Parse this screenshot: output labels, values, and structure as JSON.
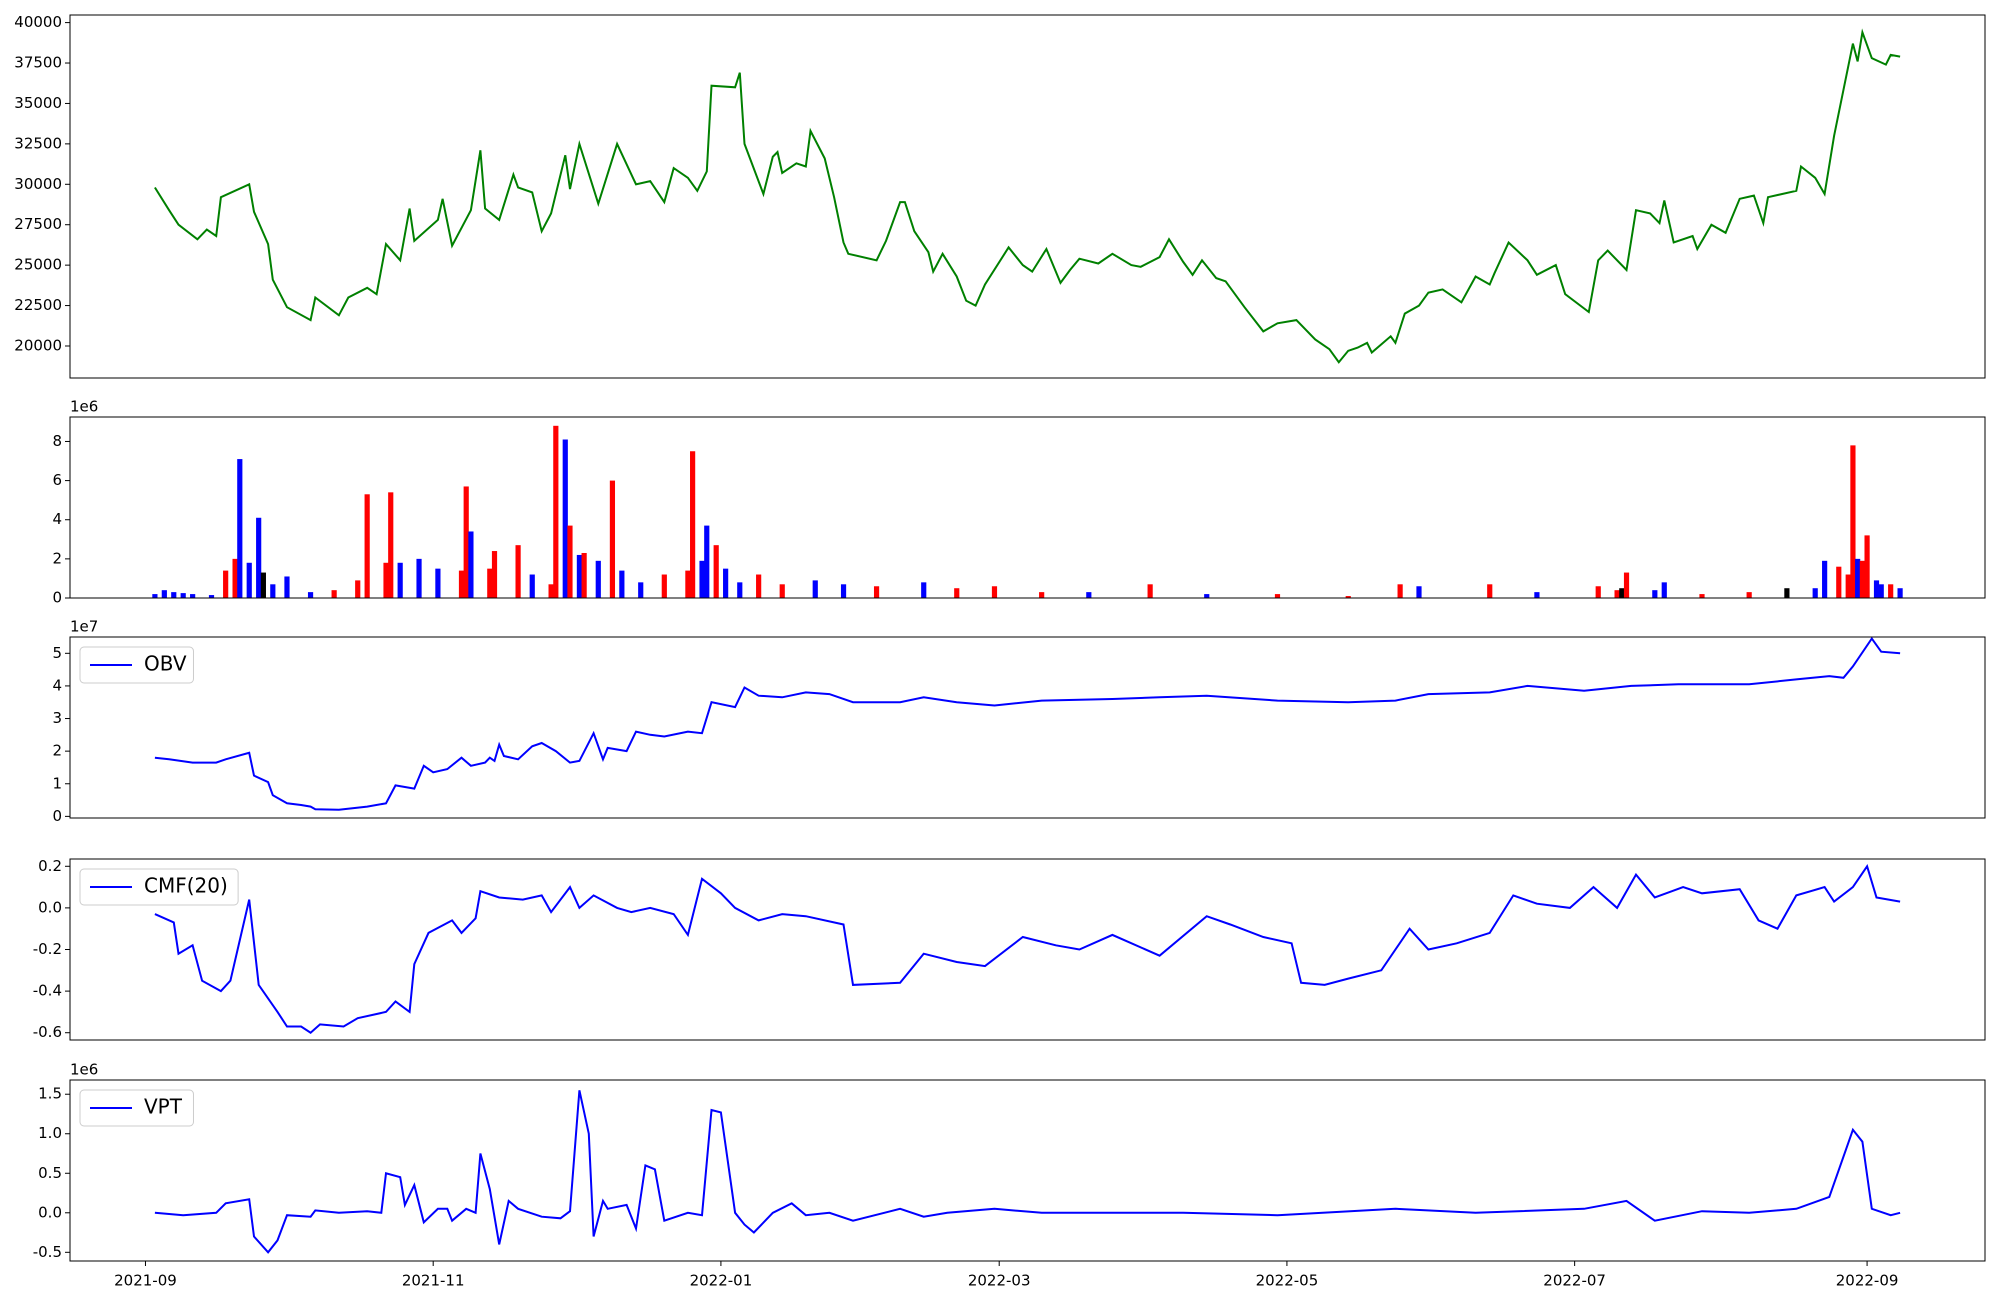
{
  "chart_data": [
    {
      "type": "line",
      "color": "#008000",
      "x": [
        2,
        5,
        7,
        11,
        13,
        15,
        16,
        22,
        23,
        26,
        27,
        30,
        35,
        36,
        41,
        43,
        47,
        49,
        51,
        54,
        56,
        57,
        62,
        63,
        65,
        69,
        71,
        72,
        75,
        78,
        79,
        82,
        84,
        86,
        89,
        90,
        92,
        96,
        100,
        104,
        107,
        110,
        112,
        115,
        117,
        119,
        120,
        125,
        126,
        127,
        131,
        133,
        134,
        135,
        138,
        140,
        141,
        144,
        146,
        148,
        149,
        155,
        157,
        160,
        161,
        163,
        166,
        167,
        169,
        172,
        174,
        176,
        178,
        183,
        186,
        188,
        191,
        194,
        196,
        198,
        202,
        205,
        209,
        211,
        215,
        217,
        220,
        222,
        224,
        227,
        229,
        233,
        237,
        240,
        244,
        248,
        251,
        253,
        255,
        257,
        259,
        260,
        262,
        264,
        265,
        267,
        270,
        272,
        275,
        279,
        282,
        285,
        286,
        289,
        293,
        295,
        299,
        301,
        306,
        308,
        310,
        314,
        316,
        319,
        321,
        322,
        324,
        328,
        329,
        332,
        335,
        338,
        341,
        343,
        344,
        350,
        351,
        354,
        356,
        358,
        362,
        363,
        364,
        366,
        369,
        370,
        372
      ],
      "values": [
        29800,
        28400,
        27500,
        26600,
        27200,
        26800,
        29200,
        30000,
        28300,
        26300,
        24100,
        22400,
        21600,
        23000,
        21900,
        23000,
        23600,
        23200,
        26300,
        25300,
        28500,
        26500,
        27800,
        29100,
        26200,
        28400,
        32100,
        28500,
        27800,
        30600,
        29800,
        29500,
        27100,
        28200,
        31800,
        29700,
        32500,
        28800,
        32500,
        30000,
        30200,
        28900,
        31000,
        30400,
        29600,
        30800,
        36100,
        36000,
        36900,
        32500,
        29400,
        31700,
        32000,
        30700,
        31300,
        31100,
        33300,
        31600,
        29200,
        26400,
        25700,
        25300,
        26500,
        28900,
        28900,
        27100,
        25800,
        24600,
        25700,
        24300,
        22800,
        22500,
        23800,
        26100,
        25000,
        24600,
        26000,
        23900,
        24700,
        25400,
        25100,
        25700,
        25000,
        24900,
        25500,
        26600,
        25200,
        24400,
        25300,
        24200,
        24000,
        22400,
        20900,
        21400,
        21600,
        20400,
        19800,
        19000,
        19700,
        19900,
        20200,
        19600,
        20100,
        20600,
        20200,
        22000,
        22500,
        23300,
        23500,
        22700,
        24300,
        23800,
        24500,
        26400,
        25300,
        24400,
        25000,
        23200,
        22100,
        25300,
        25900,
        24700,
        28400,
        28200,
        27600,
        29000,
        26400,
        26800,
        26000,
        27500,
        27000,
        29100,
        29300,
        27600,
        29200,
        29600,
        31100,
        30400,
        29400,
        33000,
        38700,
        37600,
        39400,
        37800,
        37400,
        38000,
        37900
      ],
      "xlim": [
        -16,
        390
      ],
      "ylim": [
        18020,
        40470
      ],
      "yticks": [
        20000,
        22500,
        25000,
        27500,
        30000,
        32500,
        35000,
        37500,
        40000
      ]
    },
    {
      "type": "bar",
      "offset_label": "1e6",
      "x": [
        2,
        4,
        6,
        8,
        10,
        14,
        17,
        19,
        20,
        22,
        24,
        25,
        27,
        30,
        35,
        40,
        45,
        47,
        51,
        52,
        54,
        58,
        62,
        67,
        68,
        69,
        73,
        74,
        79,
        82,
        86,
        87,
        89,
        90,
        92,
        93,
        96,
        99,
        101,
        105,
        110,
        115,
        116,
        118,
        119,
        121,
        123,
        126,
        130,
        135,
        142,
        148,
        155,
        165,
        172,
        180,
        190,
        200,
        213,
        225,
        240,
        255,
        266,
        270,
        285,
        295,
        308,
        312,
        313,
        314,
        320,
        322,
        330,
        340,
        348,
        354,
        356,
        359,
        361,
        362,
        363,
        364,
        365,
        367,
        368,
        370,
        372
      ],
      "values": [
        0.2,
        0.4,
        0.3,
        0.25,
        0.2,
        0.15,
        1.4,
        2.0,
        7.1,
        1.8,
        4.1,
        1.3,
        0.7,
        1.1,
        0.3,
        0.4,
        0.9,
        5.3,
        1.8,
        5.4,
        1.8,
        2.0,
        1.5,
        1.4,
        5.7,
        3.4,
        1.5,
        2.4,
        2.7,
        1.2,
        0.7,
        8.8,
        8.1,
        3.7,
        2.2,
        2.3,
        1.9,
        6.0,
        1.4,
        0.8,
        1.2,
        1.4,
        7.5,
        1.9,
        3.7,
        2.7,
        1.5,
        0.8,
        1.2,
        0.7,
        0.9,
        0.7,
        0.6,
        0.8,
        0.5,
        0.6,
        0.3,
        0.3,
        0.7,
        0.2,
        0.2,
        0.1,
        0.7,
        0.6,
        0.7,
        0.3,
        0.6,
        0.4,
        0.5,
        1.3,
        0.4,
        0.8,
        0.2,
        0.3,
        0.5,
        0.5,
        1.9,
        1.6,
        1.2,
        7.8,
        2.0,
        1.9,
        3.2,
        0.9,
        0.7,
        0.7,
        0.5
      ],
      "colors": [
        "#0000ff",
        "#0000ff",
        "#0000ff",
        "#0000ff",
        "#0000ff",
        "#0000ff",
        "#ff0000",
        "#ff0000",
        "#0000ff",
        "#0000ff",
        "#0000ff",
        "#000000",
        "#0000ff",
        "#0000ff",
        "#0000ff",
        "#ff0000",
        "#ff0000",
        "#ff0000",
        "#ff0000",
        "#ff0000",
        "#0000ff",
        "#0000ff",
        "#0000ff",
        "#ff0000",
        "#ff0000",
        "#0000ff",
        "#ff0000",
        "#ff0000",
        "#ff0000",
        "#0000ff",
        "#ff0000",
        "#ff0000",
        "#0000ff",
        "#ff0000",
        "#0000ff",
        "#ff0000",
        "#0000ff",
        "#ff0000",
        "#0000ff",
        "#0000ff",
        "#ff0000",
        "#ff0000",
        "#ff0000",
        "#0000ff",
        "#0000ff",
        "#ff0000",
        "#0000ff",
        "#0000ff",
        "#ff0000",
        "#ff0000",
        "#0000ff",
        "#0000ff",
        "#ff0000",
        "#0000ff",
        "#ff0000",
        "#ff0000",
        "#ff0000",
        "#0000ff",
        "#ff0000",
        "#0000ff",
        "#ff0000",
        "#ff0000",
        "#ff0000",
        "#0000ff",
        "#ff0000",
        "#0000ff",
        "#ff0000",
        "#ff0000",
        "#000000",
        "#ff0000",
        "#0000ff",
        "#0000ff",
        "#ff0000",
        "#ff0000",
        "#000000",
        "#0000ff",
        "#0000ff",
        "#ff0000",
        "#ff0000",
        "#ff0000",
        "#0000ff",
        "#ff0000",
        "#ff0000",
        "#0000ff",
        "#0000ff",
        "#ff0000",
        "#0000ff"
      ],
      "xlim": [
        -16,
        390
      ],
      "ylim": [
        0,
        9.25
      ],
      "yticks": [
        0,
        2,
        4,
        6,
        8
      ]
    },
    {
      "type": "line",
      "offset_label": "1e7",
      "legend": "upper left",
      "x": [
        2,
        5,
        10,
        15,
        17,
        22,
        23,
        26,
        27,
        30,
        33,
        35,
        36,
        41,
        47,
        51,
        53,
        57,
        59,
        61,
        64,
        67,
        69,
        72,
        73,
        74,
        75,
        76,
        79,
        82,
        84,
        87,
        90,
        92,
        95,
        97,
        98,
        102,
        104,
        107,
        110,
        115,
        118,
        120,
        125,
        127,
        130,
        135,
        140,
        145,
        150,
        160,
        165,
        172,
        180,
        190,
        205,
        215,
        225,
        240,
        255,
        265,
        272,
        285,
        293,
        305,
        315,
        325,
        340,
        350,
        357,
        360,
        362,
        366,
        368,
        372
      ],
      "series": [
        {
          "name": "OBV",
          "color": "#0000ff",
          "values": [
            1.8,
            1.75,
            1.65,
            1.65,
            1.75,
            1.95,
            1.25,
            1.05,
            0.65,
            0.4,
            0.35,
            0.3,
            0.22,
            0.2,
            0.3,
            0.4,
            0.95,
            0.85,
            1.55,
            1.35,
            1.45,
            1.8,
            1.55,
            1.65,
            1.8,
            1.7,
            2.2,
            1.85,
            1.75,
            2.15,
            2.25,
            2.0,
            1.65,
            1.7,
            2.55,
            1.75,
            2.1,
            2.0,
            2.6,
            2.5,
            2.45,
            2.6,
            2.55,
            3.5,
            3.35,
            3.95,
            3.7,
            3.65,
            3.8,
            3.75,
            3.5,
            3.5,
            3.65,
            3.5,
            3.4,
            3.55,
            3.6,
            3.65,
            3.7,
            3.55,
            3.5,
            3.55,
            3.75,
            3.8,
            4.0,
            3.85,
            4.0,
            4.05,
            4.05,
            4.2,
            4.3,
            4.25,
            4.6,
            5.45,
            5.05,
            5.0
          ]
        }
      ],
      "xlim": [
        -16,
        390
      ],
      "ylim": [
        -0.05,
        5.5
      ],
      "yticks": [
        0,
        1,
        2,
        3,
        4,
        5
      ]
    },
    {
      "type": "line",
      "legend": "upper left",
      "x": [
        2,
        6,
        7,
        10,
        12,
        16,
        18,
        22,
        24,
        28,
        30,
        33,
        35,
        37,
        42,
        45,
        51,
        53,
        56,
        57,
        60,
        65,
        67,
        70,
        71,
        75,
        80,
        84,
        86,
        90,
        92,
        95,
        100,
        103,
        107,
        112,
        115,
        118,
        122,
        125,
        130,
        135,
        140,
        148,
        150,
        160,
        165,
        172,
        178,
        186,
        193,
        198,
        205,
        215,
        225,
        230,
        237,
        243,
        245,
        250,
        255,
        262,
        268,
        272,
        278,
        285,
        290,
        295,
        302,
        307,
        312,
        316,
        320,
        326,
        330,
        338,
        342,
        346,
        350,
        356,
        358,
        362,
        365,
        367,
        372
      ],
      "series": [
        {
          "name": "CMF(20)",
          "color": "#0000ff",
          "values": [
            -0.03,
            -0.07,
            -0.22,
            -0.18,
            -0.35,
            -0.4,
            -0.35,
            0.04,
            -0.37,
            -0.5,
            -0.57,
            -0.57,
            -0.6,
            -0.56,
            -0.57,
            -0.53,
            -0.5,
            -0.45,
            -0.5,
            -0.27,
            -0.12,
            -0.06,
            -0.12,
            -0.05,
            0.08,
            0.05,
            0.04,
            0.06,
            -0.02,
            0.1,
            0.0,
            0.06,
            0.0,
            -0.02,
            0.0,
            -0.03,
            -0.13,
            0.14,
            0.07,
            0.0,
            -0.06,
            -0.03,
            -0.04,
            -0.08,
            -0.37,
            -0.36,
            -0.22,
            -0.26,
            -0.28,
            -0.14,
            -0.18,
            -0.2,
            -0.13,
            -0.23,
            -0.04,
            -0.08,
            -0.14,
            -0.17,
            -0.36,
            -0.37,
            -0.34,
            -0.3,
            -0.1,
            -0.2,
            -0.17,
            -0.12,
            0.06,
            0.02,
            0.0,
            0.1,
            0.0,
            0.16,
            0.05,
            0.1,
            0.07,
            0.09,
            -0.06,
            -0.1,
            0.06,
            0.1,
            0.03,
            0.1,
            0.2,
            0.05,
            0.03
          ]
        }
      ],
      "xlim": [
        -16,
        390
      ],
      "ylim": [
        -0.635,
        0.235
      ],
      "yticks": [
        -0.6,
        -0.4,
        -0.2,
        {
          "value": 0,
          "label": "0.0"
        },
        0.2
      ]
    },
    {
      "type": "line",
      "offset_label": "1e6",
      "legend": "upper left",
      "x": [
        2,
        8,
        15,
        17,
        22,
        23,
        26,
        28,
        30,
        35,
        36,
        41,
        47,
        50,
        51,
        54,
        55,
        57,
        59,
        62,
        64,
        65,
        68,
        70,
        71,
        73,
        75,
        77,
        79,
        84,
        88,
        90,
        92,
        94,
        95,
        97,
        98,
        102,
        104,
        106,
        108,
        110,
        115,
        118,
        120,
        122,
        125,
        127,
        129,
        133,
        137,
        140,
        145,
        150,
        160,
        165,
        170,
        180,
        190,
        200,
        220,
        240,
        265,
        282,
        305,
        314,
        320,
        330,
        340,
        350,
        357,
        362,
        364,
        366,
        370,
        372
      ],
      "series": [
        {
          "name": "VPT",
          "color": "#0000ff",
          "values": [
            0.0,
            -0.03,
            0.0,
            0.12,
            0.17,
            -0.3,
            -0.5,
            -0.35,
            -0.03,
            -0.05,
            0.03,
            0.0,
            0.02,
            0.0,
            0.5,
            0.45,
            0.1,
            0.35,
            -0.12,
            0.05,
            0.05,
            -0.1,
            0.05,
            0.0,
            0.75,
            0.3,
            -0.4,
            0.15,
            0.05,
            -0.05,
            -0.07,
            0.02,
            1.55,
            1.0,
            -0.3,
            0.15,
            0.05,
            0.1,
            -0.2,
            0.6,
            0.55,
            -0.1,
            0.0,
            -0.03,
            1.3,
            1.27,
            0.0,
            -0.15,
            -0.25,
            0.0,
            0.12,
            -0.03,
            0.0,
            -0.1,
            0.05,
            -0.05,
            0.0,
            0.05,
            0.0,
            0.0,
            0.0,
            -0.03,
            0.05,
            0.0,
            0.05,
            0.15,
            -0.1,
            0.02,
            0.0,
            0.05,
            0.2,
            1.05,
            0.9,
            0.05,
            -0.03,
            0.0
          ]
        }
      ],
      "xlim": [
        -16,
        390
      ],
      "ylim": [
        -0.61,
        1.68
      ],
      "yticks": [
        -0.5,
        {
          "value": 0,
          "label": "0.0"
        },
        0.5,
        {
          "value": 1,
          "label": "1.0"
        },
        1.5
      ],
      "xticks": [
        {
          "value": 0,
          "label": "2021-09"
        },
        {
          "value": 61,
          "label": "2021-11"
        },
        {
          "value": 122,
          "label": "2022-01"
        },
        {
          "value": 181,
          "label": "2022-03"
        },
        {
          "value": 242,
          "label": "2022-05"
        },
        {
          "value": 303,
          "label": "2022-07"
        },
        {
          "value": 365,
          "label": "2022-09"
        }
      ]
    }
  ]
}
